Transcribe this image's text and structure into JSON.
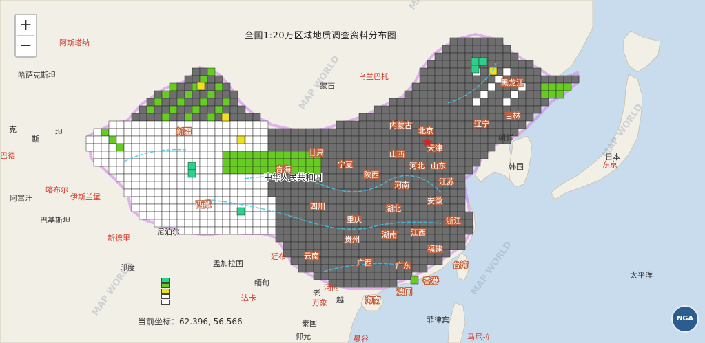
{
  "map_title": "全国1:20万区域地质调查资料分布图",
  "coordinate_readout": {
    "label": "当前坐标：",
    "value": "62.396, 56.566"
  },
  "zoom": {
    "in_label": "+",
    "out_label": "−"
  },
  "logo_text": "NGA",
  "colors": {
    "sea": "#c8dcee",
    "land": "#f2efe6",
    "surveyed": "#6e6e6e",
    "green": "#66cc22",
    "teal": "#2ecf88",
    "yellow": "#f0e020",
    "white": "#ffffff",
    "border": "#c070e0",
    "river": "#3fc6e8"
  },
  "legend_colors": [
    "#2ecf88",
    "#66cc22",
    "#f0e020",
    "#ffffff",
    "#ffffff"
  ],
  "labels": {
    "china": "中华人民共和国",
    "regions_left": [
      {
        "name": "kazakhstan",
        "text": "哈萨克斯坦"
      },
      {
        "name": "astana",
        "text": "阿斯塔纳"
      },
      {
        "name": "afghanistan",
        "text": "阿富汗"
      },
      {
        "name": "kabul",
        "text": "喀布尔"
      },
      {
        "name": "islamabad",
        "text": "伊斯兰堡"
      },
      {
        "name": "pakistan",
        "text": "巴基斯坦"
      },
      {
        "name": "newdelhi",
        "text": "新德里"
      },
      {
        "name": "india",
        "text": "印度"
      },
      {
        "name": "nepal",
        "text": "尼泊尔"
      },
      {
        "name": "ke",
        "text": "克"
      },
      {
        "name": "si",
        "text": "斯"
      },
      {
        "name": "tan",
        "text": "坦"
      },
      {
        "name": "bade",
        "text": "巴德"
      }
    ],
    "countries": [
      {
        "name": "mongolia",
        "text": "蒙古"
      },
      {
        "name": "ulaanbaatar",
        "text": "乌兰巴托"
      },
      {
        "name": "north-korea",
        "text": "朝鲜"
      },
      {
        "name": "south-korea",
        "text": "韩国"
      },
      {
        "name": "japan",
        "text": "日本"
      },
      {
        "name": "tokyo",
        "text": "东京"
      },
      {
        "name": "pacific",
        "text": "太平洋"
      },
      {
        "name": "philippines",
        "text": "菲律宾"
      },
      {
        "name": "manila",
        "text": "马尼拉"
      },
      {
        "name": "thailand",
        "text": "泰国"
      },
      {
        "name": "yangon",
        "text": "仰光"
      },
      {
        "name": "myanmar",
        "text": "缅甸"
      },
      {
        "name": "laos",
        "text": "老"
      },
      {
        "name": "vietnam",
        "text": "越"
      },
      {
        "name": "hanoi",
        "text": "河内"
      },
      {
        "name": "vientiane",
        "text": "万象"
      },
      {
        "name": "bangladesh",
        "text": "孟加拉国"
      },
      {
        "name": "thimphu",
        "text": "廷布"
      },
      {
        "name": "dhaka",
        "text": "达卡"
      },
      {
        "name": "bangkok",
        "text": "曼谷"
      }
    ],
    "provinces": [
      {
        "name": "heilongjiang",
        "text": "黑龙江"
      },
      {
        "name": "jilin",
        "text": "吉林"
      },
      {
        "name": "liaoning",
        "text": "辽宁"
      },
      {
        "name": "neimenggu",
        "text": "内蒙古"
      },
      {
        "name": "beijing",
        "text": "北京"
      },
      {
        "name": "tianjin",
        "text": "天津"
      },
      {
        "name": "hebei",
        "text": "河北"
      },
      {
        "name": "shandong",
        "text": "山东"
      },
      {
        "name": "shanxi",
        "text": "山西"
      },
      {
        "name": "shaanxi",
        "text": "陕西"
      },
      {
        "name": "ningxia",
        "text": "宁夏"
      },
      {
        "name": "gansu",
        "text": "甘肃"
      },
      {
        "name": "xinjiang",
        "text": "新疆"
      },
      {
        "name": "xizang",
        "text": "西藏"
      },
      {
        "name": "qinghai",
        "text": "青海"
      },
      {
        "name": "henan",
        "text": "河南"
      },
      {
        "name": "jiangsu",
        "text": "江苏"
      },
      {
        "name": "anhui",
        "text": "安徽"
      },
      {
        "name": "hubei",
        "text": "湖北"
      },
      {
        "name": "sichuan",
        "text": "四川"
      },
      {
        "name": "chongqing",
        "text": "重庆"
      },
      {
        "name": "hunan",
        "text": "湖南"
      },
      {
        "name": "jiangxi",
        "text": "江西"
      },
      {
        "name": "zhejiang",
        "text": "浙江"
      },
      {
        "name": "fujian",
        "text": "福建"
      },
      {
        "name": "guizhou",
        "text": "贵州"
      },
      {
        "name": "yunnan",
        "text": "云南"
      },
      {
        "name": "guangxi",
        "text": "广西"
      },
      {
        "name": "guangdong",
        "text": "广东"
      },
      {
        "name": "hainan",
        "text": "海南"
      },
      {
        "name": "taiwan",
        "text": "台湾"
      },
      {
        "name": "hongkong",
        "text": "香港"
      },
      {
        "name": "macau",
        "text": "澳门"
      }
    ],
    "watermarks": [
      "MAP WORLD",
      "MAP WORLD",
      "MAP WORLD",
      "MAP WORLD",
      "MAP WORLD"
    ]
  }
}
